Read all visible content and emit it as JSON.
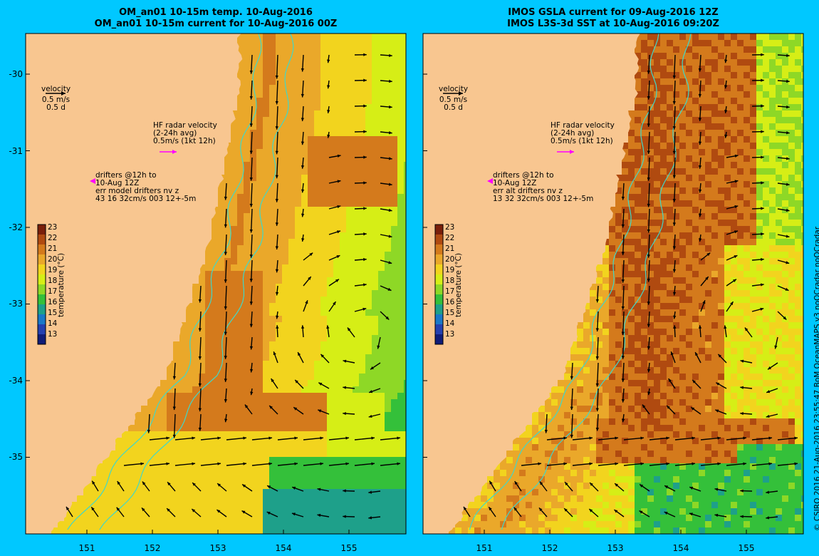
{
  "titles": {
    "left": [
      "OM_an01 10-15m temp. 10-Aug-2016",
      "OM_an01 10-15m current for 10-Aug-2016 00Z"
    ],
    "right": [
      "IMOS GSLA current for 09-Aug-2016 12Z",
      "IMOS L3S-3d SST at 10-Aug-2016 09:20Z"
    ]
  },
  "axes": {
    "lat_ticks": [
      "-30",
      "-31",
      "-32",
      "-33",
      "-34",
      "-35"
    ],
    "lon_ticks": [
      "151",
      "152",
      "153",
      "154",
      "155"
    ],
    "lon_range": [
      150.1,
      155.9
    ],
    "lat_range": [
      -35.99,
      -29.55
    ]
  },
  "annotations": {
    "velocity": [
      "velocity",
      "0.5 m/s",
      "0.5 d"
    ],
    "hf_radar": [
      "HF radar velocity",
      "(2-24h avg)",
      "0.5m/s (1kt 12h)"
    ],
    "left_drifters": [
      "drifters @12h to",
      "10-Aug 12Z",
      "err model drifters nv z",
      "43 16 32cm/s 003 12+-5m"
    ],
    "right_drifters": [
      "drifters @12h to",
      "10-Aug 12Z",
      "err alt drifters nv z",
      "13 32 32cm/s 003 12+-5m"
    ]
  },
  "colorbar": {
    "label": "temperature (°C)",
    "ticks": [
      "23",
      "22",
      "21",
      "20",
      "19",
      "18",
      "17",
      "16",
      "15",
      "14",
      "13"
    ],
    "colors": [
      "#7a1f0a",
      "#b04a10",
      "#d47a1c",
      "#eaa82a",
      "#f2d41e",
      "#d6ee16",
      "#8ed826",
      "#34c03a",
      "#1ea08a",
      "#1a78c8",
      "#2440b0",
      "#101c78"
    ]
  },
  "colors": {
    "land": "#f8c690",
    "background": "#00c8ff",
    "isobath": "#40d8c8",
    "hf_radar_arrow": "#ff00ff"
  },
  "copyright": "© CSIRO 2016   21-Aug-2016 23:55:47 BoM OceanMAPS v3 noQCradar noQCradar"
}
